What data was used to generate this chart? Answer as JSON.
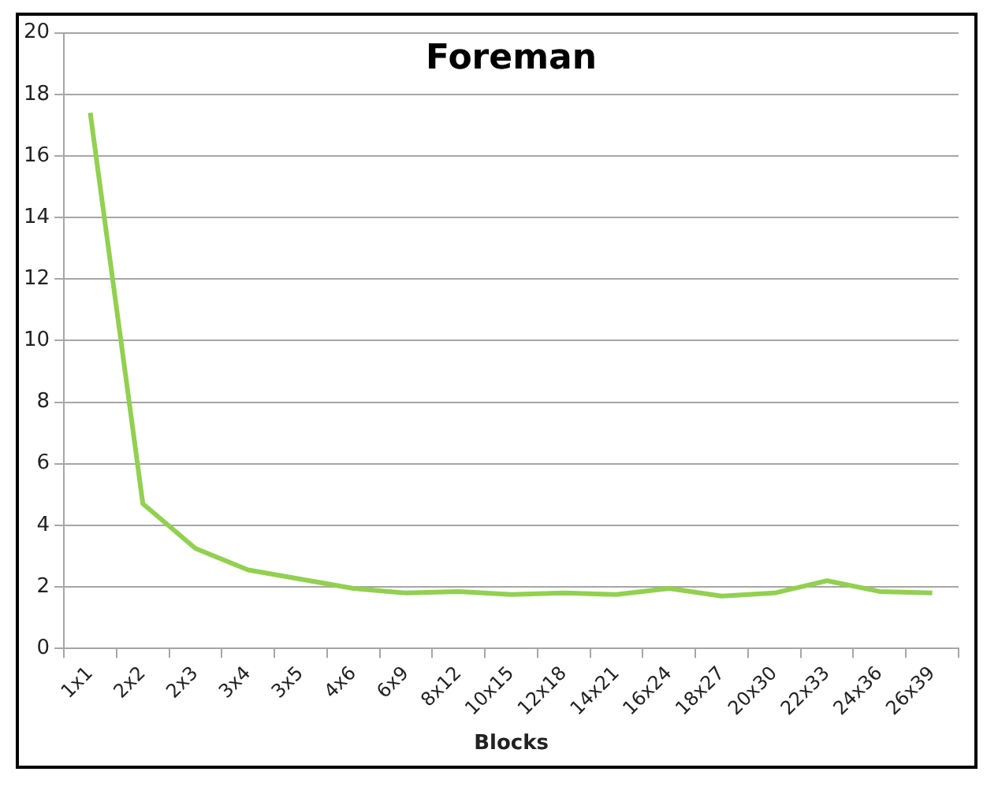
{
  "chart_data": {
    "type": "line",
    "title": "Foreman",
    "xlabel": "Blocks",
    "categories": [
      "1x1",
      "2x2",
      "2x3",
      "3x4",
      "3x5",
      "4x6",
      "6x9",
      "8x12",
      "10x15",
      "12x18",
      "14x21",
      "16x24",
      "18x27",
      "20x30",
      "22x33",
      "24x36",
      "26x39"
    ],
    "series": [
      {
        "color": "#92d050",
        "values": [
          17.4,
          4.7,
          3.25,
          2.55,
          2.25,
          1.95,
          1.8,
          1.85,
          1.75,
          1.8,
          1.75,
          1.95,
          1.7,
          1.8,
          2.2,
          1.85,
          1.8
        ]
      }
    ],
    "ylim": [
      0,
      20
    ],
    "yticks": [
      0,
      2,
      4,
      6,
      8,
      10,
      12,
      14,
      16,
      18,
      20
    ],
    "grid": "y",
    "legend": false,
    "marker": "none",
    "line_style": "solid"
  }
}
